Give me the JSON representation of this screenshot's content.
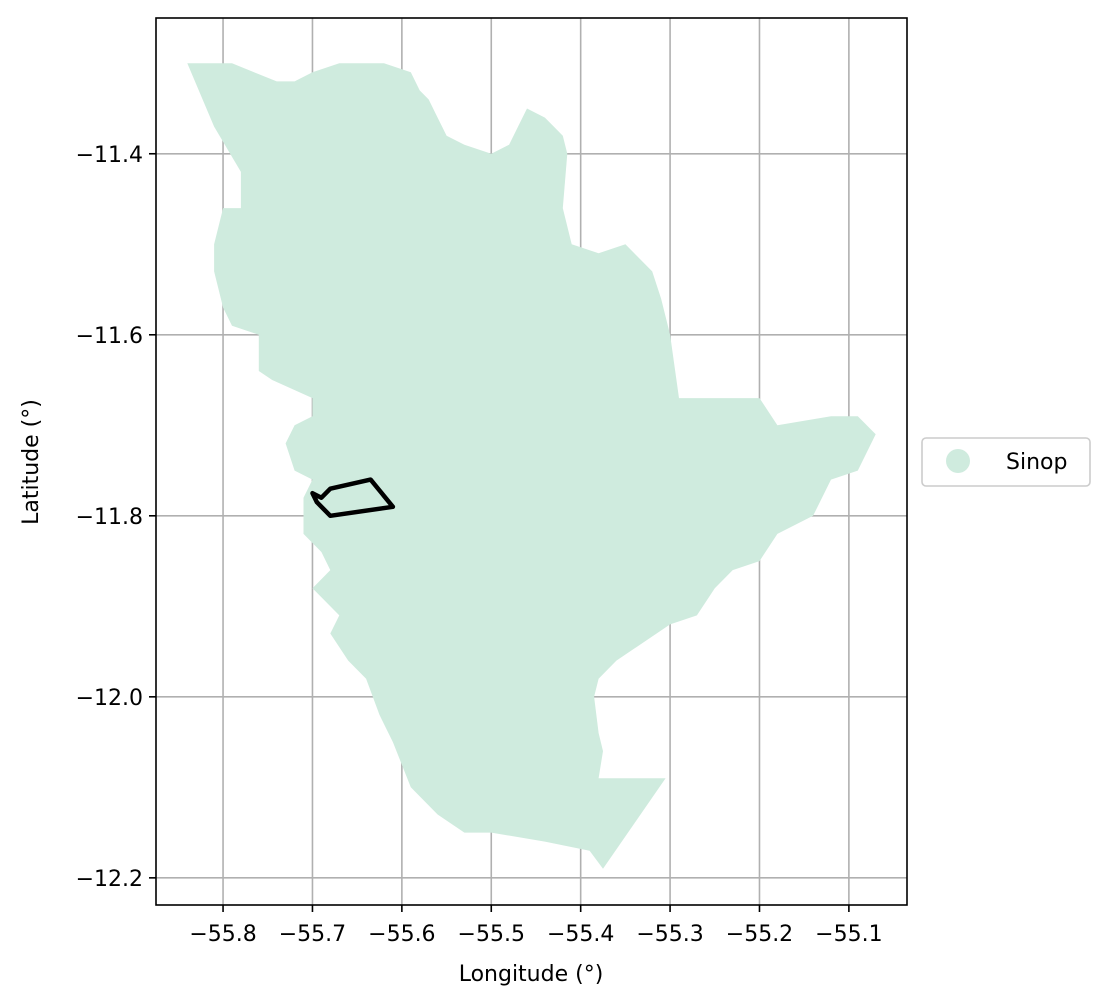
{
  "chart_data": {
    "type": "map",
    "xlabel": "Longitude (°)",
    "ylabel": "Latitude (°)",
    "xlim": [
      -55.875,
      -55.035
    ],
    "ylim": [
      -12.23,
      -11.25
    ],
    "xticks": [
      {
        "value": -55.8,
        "label": "−55.8"
      },
      {
        "value": -55.7,
        "label": "−55.7"
      },
      {
        "value": -55.6,
        "label": "−55.6"
      },
      {
        "value": -55.5,
        "label": "−55.5"
      },
      {
        "value": -55.4,
        "label": "−55.4"
      },
      {
        "value": -55.3,
        "label": "−55.3"
      },
      {
        "value": -55.2,
        "label": "−55.2"
      },
      {
        "value": -55.1,
        "label": "−55.1"
      }
    ],
    "yticks": [
      {
        "value": -11.4,
        "label": "−11.4"
      },
      {
        "value": -11.6,
        "label": "−11.6"
      },
      {
        "value": -11.8,
        "label": "−11.8"
      },
      {
        "value": -12.0,
        "label": "−12.0"
      },
      {
        "value": -12.2,
        "label": "−12.2"
      }
    ],
    "grid": true,
    "legend": {
      "placement": "right",
      "entries": [
        {
          "label": "Sinop",
          "color": "#cfebde"
        }
      ]
    },
    "region": {
      "name": "Sinop",
      "fill": "#cfebde",
      "boundary": [
        [
          -55.84,
          -11.3
        ],
        [
          -55.79,
          -11.3
        ],
        [
          -55.74,
          -11.32
        ],
        [
          -55.72,
          -11.32
        ],
        [
          -55.7,
          -11.31
        ],
        [
          -55.67,
          -11.3
        ],
        [
          -55.62,
          -11.3
        ],
        [
          -55.59,
          -11.31
        ],
        [
          -55.58,
          -11.33
        ],
        [
          -55.57,
          -11.34
        ],
        [
          -55.56,
          -11.36
        ],
        [
          -55.55,
          -11.38
        ],
        [
          -55.53,
          -11.39
        ],
        [
          -55.5,
          -11.4
        ],
        [
          -55.48,
          -11.39
        ],
        [
          -55.46,
          -11.35
        ],
        [
          -55.44,
          -11.36
        ],
        [
          -55.42,
          -11.38
        ],
        [
          -55.415,
          -11.4
        ],
        [
          -55.42,
          -11.46
        ],
        [
          -55.41,
          -11.5
        ],
        [
          -55.38,
          -11.51
        ],
        [
          -55.35,
          -11.5
        ],
        [
          -55.32,
          -11.53
        ],
        [
          -55.31,
          -11.56
        ],
        [
          -55.3,
          -11.6
        ],
        [
          -55.29,
          -11.67
        ],
        [
          -55.2,
          -11.67
        ],
        [
          -55.18,
          -11.7
        ],
        [
          -55.12,
          -11.69
        ],
        [
          -55.09,
          -11.69
        ],
        [
          -55.07,
          -11.71
        ],
        [
          -55.09,
          -11.75
        ],
        [
          -55.12,
          -11.76
        ],
        [
          -55.14,
          -11.8
        ],
        [
          -55.18,
          -11.82
        ],
        [
          -55.2,
          -11.85
        ],
        [
          -55.23,
          -11.86
        ],
        [
          -55.25,
          -11.88
        ],
        [
          -55.27,
          -11.91
        ],
        [
          -55.3,
          -11.92
        ],
        [
          -55.33,
          -11.94
        ],
        [
          -55.36,
          -11.96
        ],
        [
          -55.38,
          -11.98
        ],
        [
          -55.385,
          -12.0
        ],
        [
          -55.38,
          -12.04
        ],
        [
          -55.375,
          -12.06
        ],
        [
          -55.38,
          -12.09
        ],
        [
          -55.305,
          -12.09
        ],
        [
          -55.34,
          -12.14
        ],
        [
          -55.375,
          -12.19
        ],
        [
          -55.39,
          -12.17
        ],
        [
          -55.44,
          -12.16
        ],
        [
          -55.5,
          -12.15
        ],
        [
          -55.53,
          -12.15
        ],
        [
          -55.56,
          -12.13
        ],
        [
          -55.59,
          -12.1
        ],
        [
          -55.61,
          -12.05
        ],
        [
          -55.625,
          -12.02
        ],
        [
          -55.64,
          -11.98
        ],
        [
          -55.66,
          -11.96
        ],
        [
          -55.68,
          -11.93
        ],
        [
          -55.67,
          -11.91
        ],
        [
          -55.7,
          -11.88
        ],
        [
          -55.68,
          -11.86
        ],
        [
          -55.69,
          -11.84
        ],
        [
          -55.71,
          -11.82
        ],
        [
          -55.71,
          -11.78
        ],
        [
          -55.7,
          -11.76
        ],
        [
          -55.72,
          -11.75
        ],
        [
          -55.73,
          -11.72
        ],
        [
          -55.72,
          -11.7
        ],
        [
          -55.7,
          -11.69
        ],
        [
          -55.7,
          -11.67
        ],
        [
          -55.745,
          -11.65
        ],
        [
          -55.76,
          -11.64
        ],
        [
          -55.76,
          -11.6
        ],
        [
          -55.79,
          -11.59
        ],
        [
          -55.8,
          -11.57
        ],
        [
          -55.81,
          -11.53
        ],
        [
          -55.81,
          -11.5
        ],
        [
          -55.8,
          -11.46
        ],
        [
          -55.78,
          -11.46
        ],
        [
          -55.78,
          -11.42
        ],
        [
          -55.81,
          -11.37
        ],
        [
          -55.84,
          -11.3
        ]
      ]
    },
    "outline": {
      "stroke": "#000000",
      "boundary": [
        [
          -55.7,
          -11.775
        ],
        [
          -55.69,
          -11.78
        ],
        [
          -55.68,
          -11.77
        ],
        [
          -55.635,
          -11.76
        ],
        [
          -55.61,
          -11.79
        ],
        [
          -55.68,
          -11.8
        ],
        [
          -55.695,
          -11.785
        ],
        [
          -55.7,
          -11.775
        ]
      ]
    }
  }
}
